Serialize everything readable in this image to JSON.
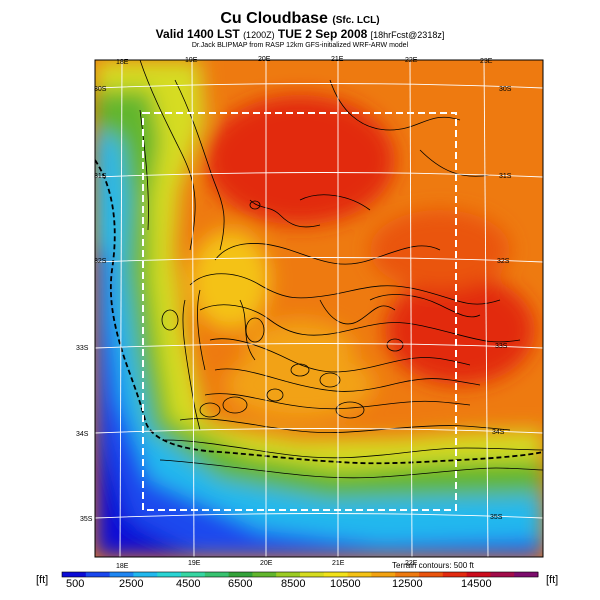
{
  "title": {
    "main": "Cu Cloudbase",
    "main_suffix": "(Sfc. LCL)",
    "valid": "Valid 1400 LST",
    "valid_z": "(1200Z)",
    "valid_date": "TUE 2 Sep 2008",
    "forecast": "[18hrFcst@2318z]",
    "credit": "Dr.Jack BLIPMAP from RASP 12km GFS-initialized WRF-ARW model"
  },
  "map": {
    "lon_labels_top": [
      "18E",
      "19E",
      "20E",
      "21E",
      "22E",
      "23E"
    ],
    "lon_labels_bottom": [
      "18E",
      "19E",
      "20E",
      "21E",
      "22E"
    ],
    "lat_labels_left": [
      "30S",
      "31S",
      "32S",
      "33S",
      "34S",
      "35S"
    ],
    "lat_labels_right": [
      "30S",
      "31S",
      "32S",
      "33S",
      "34S",
      "35S"
    ],
    "terrain_note": "Terrain contours: 500 ft"
  },
  "colorbar": {
    "unit_left": "[ft]",
    "unit_right": "[ft]",
    "tick_labels": [
      "500",
      "2500",
      "4500",
      "6500",
      "8500",
      "10500",
      "12500",
      "14500"
    ],
    "colors": [
      "#0c0cd6",
      "#1a48ee",
      "#1f86f2",
      "#22b8ee",
      "#2ad4d4",
      "#36d6a2",
      "#38c270",
      "#33a23a",
      "#62b62e",
      "#9ccc24",
      "#d6dc20",
      "#f2e21a",
      "#f4c216",
      "#f2a212",
      "#ee7a10",
      "#ea540e",
      "#e22a10",
      "#cc0c1c",
      "#a20c4a",
      "#7c0c6c"
    ]
  }
}
